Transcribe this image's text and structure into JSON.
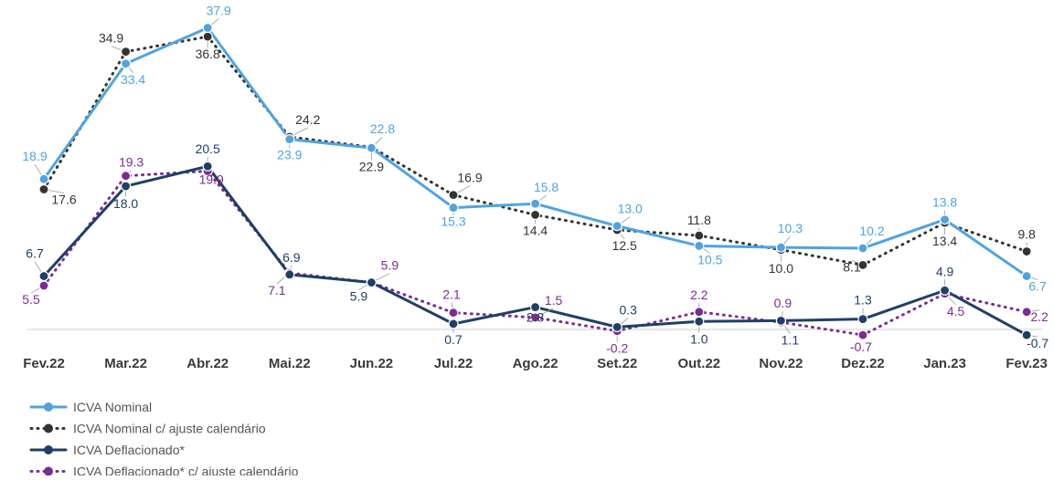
{
  "chart_data": {
    "type": "line",
    "categories": [
      "Fev.22",
      "Mar.22",
      "Abr.22",
      "Mai.22",
      "Jun.22",
      "Jul.22",
      "Ago.22",
      "Set.22",
      "Out.22",
      "Nov.22",
      "Dez.22",
      "Jan.23",
      "Fev.23"
    ],
    "series": [
      {
        "name": "ICVA Nominal",
        "color": "#4fa3e0",
        "dash": "solid",
        "values": [
          18.9,
          33.4,
          37.9,
          23.9,
          22.8,
          15.3,
          15.8,
          13.0,
          10.5,
          10.3,
          10.2,
          13.8,
          6.7
        ]
      },
      {
        "name": "ICVA Nominal c/ ajuste calendário",
        "color": "#333333",
        "dash": "dotted",
        "values": [
          17.6,
          34.9,
          36.8,
          24.2,
          22.9,
          16.9,
          14.4,
          12.5,
          11.8,
          10.0,
          8.1,
          13.4,
          9.8
        ]
      },
      {
        "name": "ICVA Deflacionado*",
        "color": "#1f3f66",
        "dash": "solid",
        "values": [
          6.7,
          18.0,
          20.5,
          6.9,
          5.9,
          0.7,
          2.8,
          0.3,
          1.0,
          1.1,
          1.3,
          4.9,
          -0.7
        ]
      },
      {
        "name": "ICVA Deflacionado* c/ ajuste calendário",
        "color": "#7b2c93",
        "dash": "dotted",
        "values": [
          5.5,
          19.3,
          19.9,
          7.1,
          5.9,
          2.1,
          1.5,
          -0.2,
          2.2,
          0.9,
          -0.7,
          4.5,
          2.2
        ]
      }
    ],
    "ylim": [
      -3,
      42
    ],
    "grid": false,
    "legend_position": "bottom-left",
    "title": "",
    "xlabel": "",
    "ylabel": ""
  }
}
